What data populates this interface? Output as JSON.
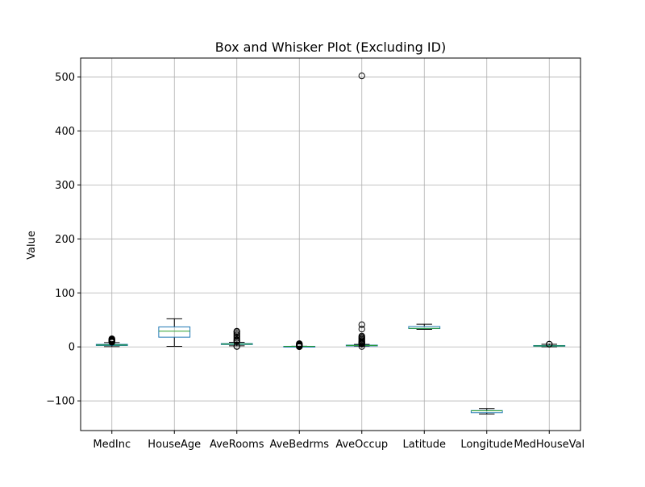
{
  "chart_data": {
    "type": "box",
    "title": "Box and Whisker Plot (Excluding ID)",
    "xlabel": "",
    "ylabel": "Value",
    "ylim": [
      -155,
      535
    ],
    "yticks": [
      -100,
      0,
      100,
      200,
      300,
      400,
      500
    ],
    "ytick_labels": [
      "−100",
      "0",
      "100",
      "200",
      "300",
      "400",
      "500"
    ],
    "grid": true,
    "categories": [
      "MedInc",
      "HouseAge",
      "AveRooms",
      "AveBedrms",
      "AveOccup",
      "Latitude",
      "Longitude",
      "MedHouseVal"
    ],
    "boxes": [
      {
        "category": "MedInc",
        "whislo": 0.5,
        "q1": 2.6,
        "med": 3.5,
        "q3": 4.7,
        "whishi": 8.0,
        "fliers": [
          8.5,
          9.2,
          10.0,
          11.0,
          12.0,
          13.0,
          14.0,
          15.0
        ]
      },
      {
        "category": "HouseAge",
        "whislo": 1,
        "q1": 18,
        "med": 29,
        "q3": 37,
        "whishi": 52,
        "fliers": []
      },
      {
        "category": "AveRooms",
        "whislo": 2.0,
        "q1": 4.4,
        "med": 5.2,
        "q3": 6.1,
        "whishi": 8.5,
        "fliers": [
          0.8,
          1.0,
          9.5,
          11.0,
          13.0,
          16.0,
          19.0,
          22.0,
          25.0,
          28.0,
          29.0
        ]
      },
      {
        "category": "AveBedrms",
        "whislo": 0.9,
        "q1": 1.0,
        "med": 1.05,
        "q3": 1.1,
        "whishi": 1.25,
        "fliers": [
          0.4,
          0.6,
          1.5,
          2.0,
          3.0,
          4.0,
          5.0,
          6.0
        ]
      },
      {
        "category": "AveOccup",
        "whislo": 1.2,
        "q1": 2.4,
        "med": 2.8,
        "q3": 3.3,
        "whishi": 4.6,
        "fliers": [
          0.8,
          5.0,
          6.0,
          7.0,
          8.0,
          9.0,
          10.0,
          12.0,
          14.0,
          16.0,
          18.0,
          20.0,
          33.0,
          41.0,
          502.0
        ]
      },
      {
        "category": "Latitude",
        "whislo": 32.5,
        "q1": 33.9,
        "med": 34.3,
        "q3": 37.7,
        "whishi": 42.0,
        "fliers": []
      },
      {
        "category": "Longitude",
        "whislo": -124.3,
        "q1": -121.8,
        "med": -118.5,
        "q3": -118.0,
        "whishi": -114.3,
        "fliers": []
      },
      {
        "category": "MedHouseVal",
        "whislo": 0.15,
        "q1": 1.2,
        "med": 1.8,
        "q3": 2.6,
        "whishi": 4.8,
        "fliers": [
          4.9,
          5.0
        ]
      }
    ],
    "colors": {
      "box": "#1f77b4",
      "median": "#2ca02c",
      "whisker": "#000000",
      "flier": "#000000",
      "grid": "#b0b0b0",
      "axes": "#000000",
      "background": "#ffffff"
    }
  }
}
